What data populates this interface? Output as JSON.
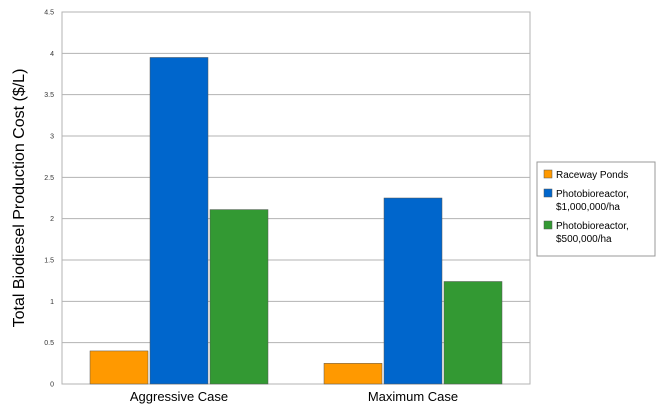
{
  "chart_data": {
    "type": "bar",
    "title": "",
    "xlabel": "",
    "ylabel": "Total Biodiesel Production Cost ($/L)",
    "categories": [
      "Aggressive Case",
      "Maximum Case"
    ],
    "ylim": [
      0,
      4.5
    ],
    "yticks": [
      "0",
      "0.5",
      "1",
      "1.5",
      "2",
      "2.5",
      "3",
      "3.5",
      "4",
      "4.5"
    ],
    "grid": true,
    "legend_position": "right",
    "series": [
      {
        "name": "Raceway Ponds",
        "legend_lines": [
          "Raceway Ponds"
        ],
        "color": "#ff9900",
        "values": [
          0.4,
          0.25
        ]
      },
      {
        "name": "Photobioreactor, $1,000,000/ha",
        "legend_lines": [
          "Photobioreactor,",
          "$1,000,000/ha"
        ],
        "color": "#0066cc",
        "values": [
          3.95,
          2.25
        ]
      },
      {
        "name": "Photobioreactor, $500,000/ha",
        "legend_lines": [
          "Photobioreactor,",
          "$500,000/ha"
        ],
        "color": "#339933",
        "values": [
          2.11,
          1.24
        ]
      }
    ]
  }
}
